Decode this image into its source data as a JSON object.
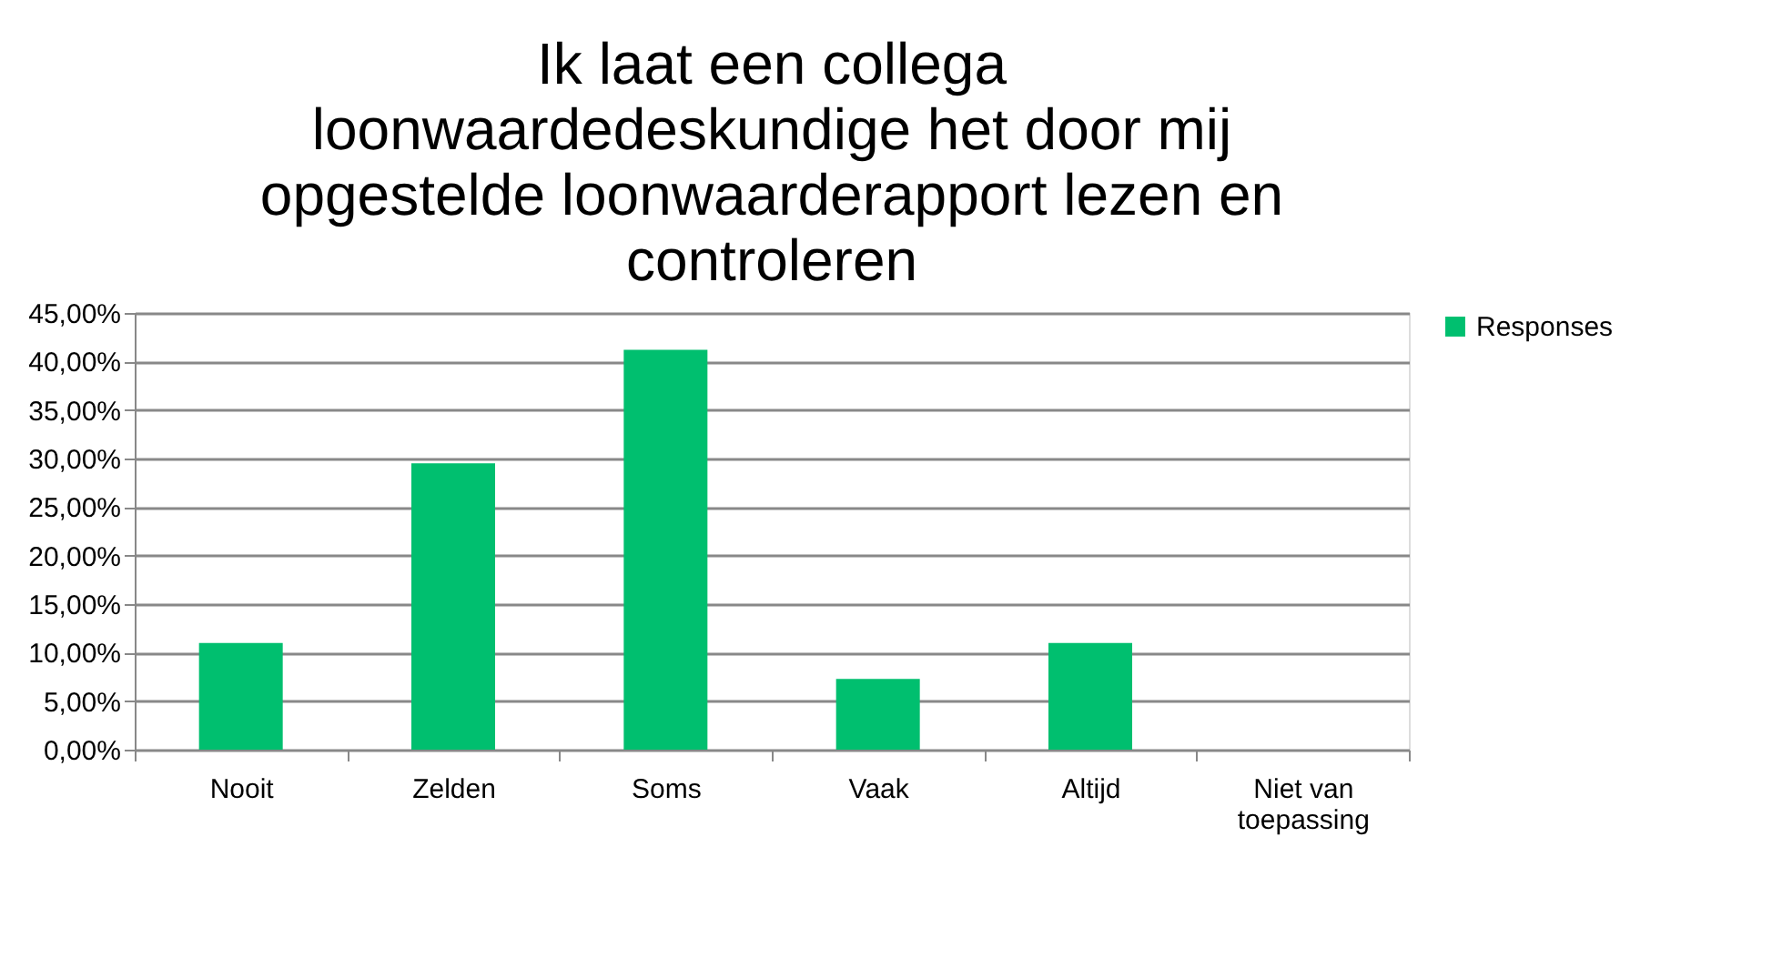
{
  "chart_data": {
    "type": "bar",
    "title": "Ik laat een collega loonwaardedeskundige het door mij opgestelde loonwaarderapport lezen en controleren",
    "categories": [
      "Nooit",
      "Zelden",
      "Soms",
      "Vaak",
      "Altijd",
      "Niet van toepassing"
    ],
    "series": [
      {
        "name": "Responses",
        "color": "#00bf6f",
        "values": [
          11.0,
          29.5,
          41.2,
          7.3,
          11.0,
          0
        ]
      }
    ],
    "ylim": [
      0,
      45
    ],
    "yticks": [
      {
        "value": 0,
        "label": "0,00%"
      },
      {
        "value": 5,
        "label": "5,00%"
      },
      {
        "value": 10,
        "label": "10,00%"
      },
      {
        "value": 15,
        "label": "15,00%"
      },
      {
        "value": 20,
        "label": "20,00%"
      },
      {
        "value": 25,
        "label": "25,00%"
      },
      {
        "value": 30,
        "label": "30,00%"
      },
      {
        "value": 35,
        "label": "35,00%"
      },
      {
        "value": 40,
        "label": "40,00%"
      },
      {
        "value": 45,
        "label": "45,00%"
      }
    ],
    "grid": "y",
    "legend": "right"
  }
}
